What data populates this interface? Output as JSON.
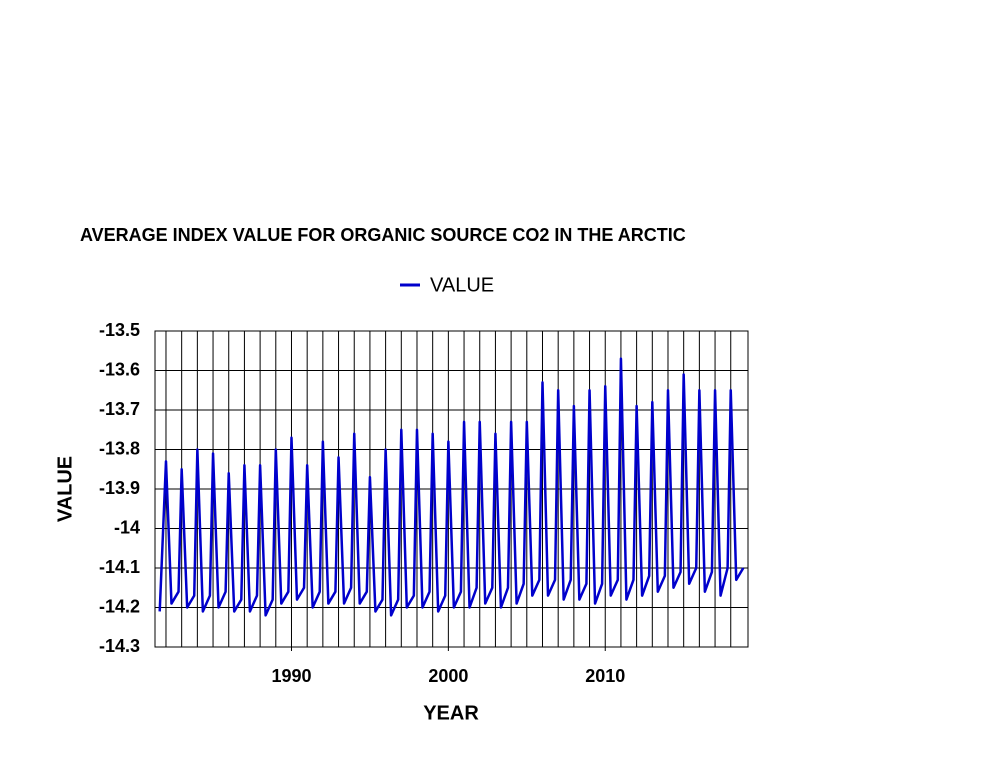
{
  "chart_data": {
    "type": "line",
    "title": "AVERAGE INDEX VALUE FOR ORGANIC SOURCE CO2 IN THE ARCTIC",
    "xlabel": "YEAR",
    "ylabel": "VALUE",
    "xlim": [
      1981.3,
      2019.1
    ],
    "ylim": [
      -14.3,
      -13.5
    ],
    "xticks": [
      1990,
      2000,
      2010
    ],
    "x_gridlines": [
      1982,
      1983,
      1984,
      1985,
      1986,
      1987,
      1988,
      1989,
      1990,
      1991,
      1992,
      1993,
      1994,
      1995,
      1996,
      1997,
      1998,
      1999,
      2000,
      2001,
      2002,
      2003,
      2004,
      2005,
      2006,
      2007,
      2008,
      2009,
      2010,
      2011,
      2012,
      2013,
      2014,
      2015,
      2016,
      2017,
      2018
    ],
    "yticks": [
      -13.5,
      -13.6,
      -13.7,
      -13.8,
      -13.9,
      -14,
      -14.1,
      -14.2,
      -14.3
    ],
    "grid": true,
    "x": [
      1981.6,
      1982,
      1982.35,
      1982.8,
      1983,
      1983.35,
      1983.8,
      1984,
      1984.35,
      1984.8,
      1985,
      1985.35,
      1985.8,
      1986,
      1986.35,
      1986.8,
      1987,
      1987.35,
      1987.8,
      1988,
      1988.35,
      1988.8,
      1989,
      1989.35,
      1989.8,
      1990,
      1990.35,
      1990.8,
      1991,
      1991.35,
      1991.8,
      1992,
      1992.35,
      1992.8,
      1993,
      1993.35,
      1993.8,
      1994,
      1994.35,
      1994.8,
      1995,
      1995.35,
      1995.8,
      1996,
      1996.35,
      1996.8,
      1997,
      1997.35,
      1997.8,
      1998,
      1998.35,
      1998.8,
      1999,
      1999.35,
      1999.8,
      2000,
      2000.35,
      2000.8,
      2001,
      2001.35,
      2001.8,
      2002,
      2002.35,
      2002.8,
      2003,
      2003.35,
      2003.8,
      2004,
      2004.35,
      2004.8,
      2005,
      2005.35,
      2005.8,
      2006,
      2006.35,
      2006.8,
      2007,
      2007.35,
      2007.8,
      2008,
      2008.35,
      2008.8,
      2009,
      2009.35,
      2009.8,
      2010,
      2010.35,
      2010.8,
      2011,
      2011.35,
      2011.8,
      2012,
      2012.35,
      2012.8,
      2013,
      2013.35,
      2013.8,
      2014,
      2014.35,
      2014.8,
      2015,
      2015.35,
      2015.8,
      2016,
      2016.35,
      2016.8,
      2017,
      2017.35,
      2017.8,
      2018,
      2018.35,
      2018.8
    ],
    "series": [
      {
        "name": "VALUE",
        "color": "#0000cc",
        "values": [
          -14.21,
          -13.83,
          -14.19,
          -14.16,
          -13.85,
          -14.2,
          -14.17,
          -13.8,
          -14.21,
          -14.17,
          -13.81,
          -14.2,
          -14.16,
          -13.86,
          -14.21,
          -14.18,
          -13.84,
          -14.21,
          -14.17,
          -13.84,
          -14.22,
          -14.18,
          -13.8,
          -14.19,
          -14.16,
          -13.77,
          -14.18,
          -14.15,
          -13.84,
          -14.2,
          -14.16,
          -13.78,
          -14.19,
          -14.16,
          -13.82,
          -14.19,
          -14.15,
          -13.76,
          -14.19,
          -14.16,
          -13.87,
          -14.21,
          -14.18,
          -13.8,
          -14.22,
          -14.18,
          -13.75,
          -14.2,
          -14.17,
          -13.75,
          -14.2,
          -14.16,
          -13.76,
          -14.21,
          -14.17,
          -13.78,
          -14.2,
          -14.16,
          -13.73,
          -14.2,
          -14.15,
          -13.73,
          -14.19,
          -14.15,
          -13.76,
          -14.2,
          -14.15,
          -13.73,
          -14.19,
          -14.14,
          -13.73,
          -14.17,
          -14.13,
          -13.63,
          -14.17,
          -14.13,
          -13.65,
          -14.18,
          -14.13,
          -13.69,
          -14.18,
          -14.14,
          -13.65,
          -14.19,
          -14.14,
          -13.64,
          -14.17,
          -14.13,
          -13.57,
          -14.18,
          -14.13,
          -13.69,
          -14.17,
          -14.12,
          -13.68,
          -14.16,
          -14.12,
          -13.65,
          -14.15,
          -14.11,
          -13.61,
          -14.14,
          -14.1,
          -13.65,
          -14.16,
          -14.11,
          -13.65,
          -14.17,
          -14.1,
          -13.65,
          -14.13,
          -14.1
        ]
      }
    ]
  }
}
